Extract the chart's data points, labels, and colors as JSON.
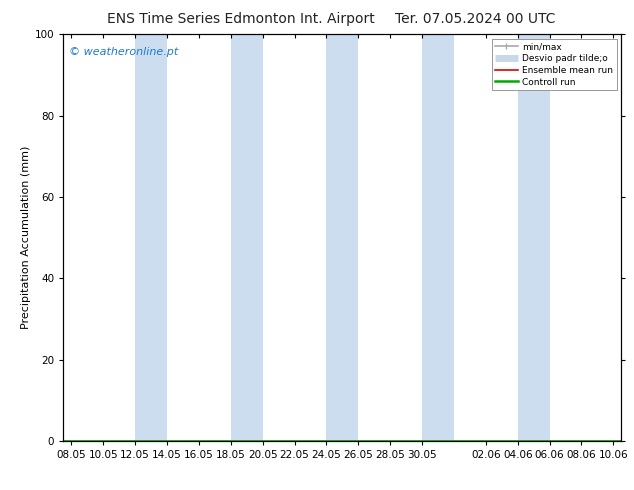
{
  "title_left": "ENS Time Series Edmonton Int. Airport",
  "title_right": "Ter. 07.05.2024 00 UTC",
  "ylabel": "Precipitation Accumulation (mm)",
  "watermark": "© weatheronline.pt",
  "ylim": [
    0,
    100
  ],
  "yticks": [
    0,
    20,
    40,
    60,
    80,
    100
  ],
  "xtick_labels": [
    "08.05",
    "10.05",
    "12.05",
    "14.05",
    "16.05",
    "18.05",
    "20.05",
    "22.05",
    "24.05",
    "26.05",
    "28.05",
    "30.05",
    "02.06",
    "04.06",
    "06.06",
    "08.06",
    "10.06"
  ],
  "xtick_positions": [
    0,
    2,
    4,
    6,
    8,
    10,
    12,
    14,
    16,
    18,
    20,
    22,
    26,
    28,
    30,
    32,
    34
  ],
  "band_positions_x": [
    4,
    10,
    16,
    22,
    28
  ],
  "band_widths": [
    2,
    2,
    2,
    2,
    2
  ],
  "band_color": "#ccddf0",
  "background_color": "#ffffff",
  "legend_label_min_max": "min/max",
  "legend_label_desvio": "Desvio padr tilde;o",
  "legend_label_ensemble": "Ensemble mean run",
  "legend_label_control": "Controll run",
  "legend_color_min_max": "#aaaaaa",
  "legend_color_desvio": "#c8d8e8",
  "legend_color_ensemble": "#dd0000",
  "legend_color_control": "#00aa00",
  "title_fontsize": 10,
  "watermark_color": "#1e7acc",
  "watermark_fontsize": 8,
  "ylabel_fontsize": 8,
  "tick_fontsize": 7.5
}
